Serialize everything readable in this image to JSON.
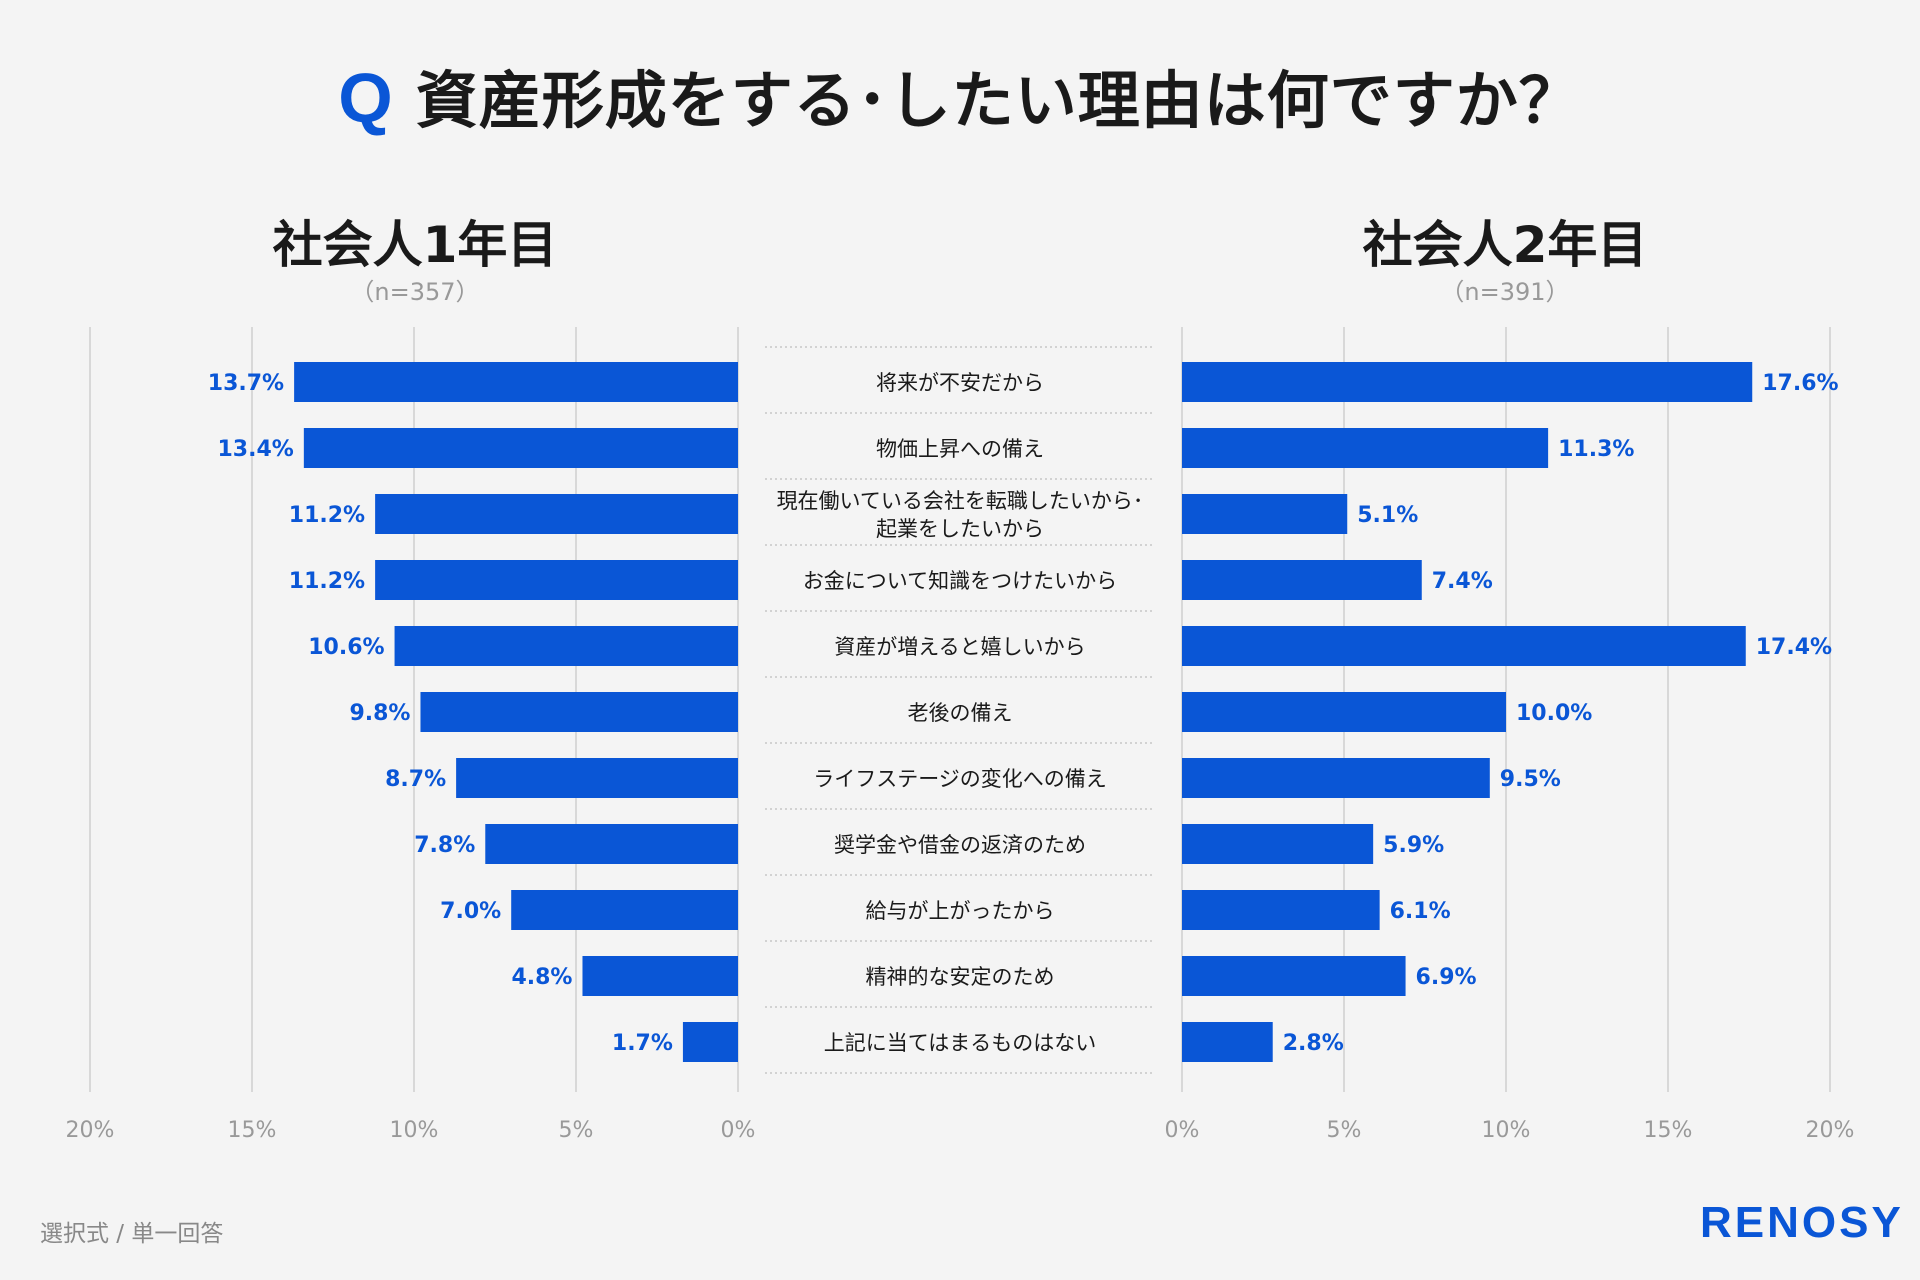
{
  "title": {
    "q": "Q",
    "text": "資産形成をする･したい理由は何ですか？"
  },
  "panels": {
    "left": {
      "title": "社会人1年目",
      "n": "（n=357）"
    },
    "right": {
      "title": "社会人2年目",
      "n": "（n=391）"
    }
  },
  "footer": "選択式 / 単一回答",
  "logo": "RENOSY",
  "colors": {
    "bar": "#0a56d6",
    "value_label": "#0a56d6",
    "grid": "#cfcfcf",
    "tick": "#999999"
  },
  "chart_data": [
    {
      "type": "bar",
      "orientation": "horizontal",
      "title": "社会人1年目",
      "subtitle": "（n=357）",
      "direction": "right-to-left",
      "categories": [
        "将来が不安だから",
        "物価上昇への備え",
        "現在働いている会社を転職したいから･\n起業をしたいから",
        "お金について知識をつけたいから",
        "資産が増えると嬉しいから",
        "老後の備え",
        "ライフステージの変化への備え",
        "奨学金や借金の返済のため",
        "給与が上がったから",
        "精神的な安定のため",
        "上記に当てはまるものはない"
      ],
      "values": [
        13.7,
        13.4,
        11.2,
        11.2,
        10.6,
        9.8,
        8.7,
        7.8,
        7.0,
        4.8,
        1.7
      ],
      "value_labels": [
        "13.7%",
        "13.4%",
        "11.2%",
        "11.2%",
        "10.6%",
        "9.8%",
        "8.7%",
        "7.8%",
        "7.0%",
        "4.8%",
        "1.7%"
      ],
      "xlim": [
        0,
        20
      ],
      "ticks": [
        "0%",
        "5%",
        "10%",
        "15%",
        "20%"
      ],
      "grid": true
    },
    {
      "type": "bar",
      "orientation": "horizontal",
      "title": "社会人2年目",
      "subtitle": "（n=391）",
      "direction": "left-to-right",
      "categories": [
        "将来が不安だから",
        "物価上昇への備え",
        "現在働いている会社を転職したいから･\n起業をしたいから",
        "お金について知識をつけたいから",
        "資産が増えると嬉しいから",
        "老後の備え",
        "ライフステージの変化への備え",
        "奨学金や借金の返済のため",
        "給与が上がったから",
        "精神的な安定のため",
        "上記に当てはまるものはない"
      ],
      "values": [
        17.6,
        11.3,
        5.1,
        7.4,
        17.4,
        10.0,
        9.5,
        5.9,
        6.1,
        6.9,
        2.8
      ],
      "value_labels": [
        "17.6%",
        "11.3%",
        "5.1%",
        "7.4%",
        "17.4%",
        "10.0%",
        "9.5%",
        "5.9%",
        "6.1%",
        "6.9%",
        "2.8%"
      ],
      "xlim": [
        0,
        20
      ],
      "ticks": [
        "0%",
        "5%",
        "10%",
        "15%",
        "20%"
      ],
      "grid": true
    }
  ]
}
